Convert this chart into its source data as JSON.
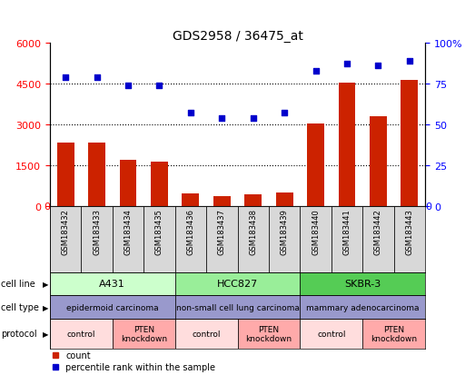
{
  "title": "GDS2958 / 36475_at",
  "samples": [
    "GSM183432",
    "GSM183433",
    "GSM183434",
    "GSM183435",
    "GSM183436",
    "GSM183437",
    "GSM183438",
    "GSM183439",
    "GSM183440",
    "GSM183441",
    "GSM183442",
    "GSM183443"
  ],
  "counts": [
    2350,
    2350,
    1700,
    1650,
    480,
    380,
    430,
    520,
    3050,
    4550,
    3300,
    4650
  ],
  "percentiles": [
    79,
    79,
    74,
    74,
    57,
    54,
    54,
    57,
    83,
    87,
    86,
    89
  ],
  "ylim_left": [
    0,
    6000
  ],
  "ylim_right": [
    0,
    100
  ],
  "yticks_left": [
    0,
    1500,
    3000,
    4500,
    6000
  ],
  "yticks_right": [
    0,
    25,
    50,
    75,
    100
  ],
  "bar_color": "#cc2200",
  "dot_color": "#0000cc",
  "cell_line_spans": [
    [
      0,
      3
    ],
    [
      4,
      7
    ],
    [
      8,
      11
    ]
  ],
  "cell_line_labels": [
    "A431",
    "HCC827",
    "SKBR-3"
  ],
  "cell_line_colors": [
    "#ccffcc",
    "#99ee99",
    "#55cc55"
  ],
  "cell_type_labels": [
    "epidermoid carcinoma",
    "non-small cell lung carcinoma",
    "mammary adenocarcinoma"
  ],
  "cell_type_color": "#9999cc",
  "protocol_regions": [
    [
      0,
      1,
      "control",
      "#ffdddd"
    ],
    [
      2,
      3,
      "PTEN\nknockdown",
      "#ffaaaa"
    ],
    [
      4,
      5,
      "control",
      "#ffdddd"
    ],
    [
      6,
      7,
      "PTEN\nknockdown",
      "#ffaaaa"
    ],
    [
      8,
      9,
      "control",
      "#ffdddd"
    ],
    [
      10,
      11,
      "PTEN\nknockdown",
      "#ffaaaa"
    ]
  ],
  "row_labels": [
    "cell line",
    "cell type",
    "protocol"
  ],
  "legend_count_color": "#cc2200",
  "legend_dot_color": "#0000cc"
}
